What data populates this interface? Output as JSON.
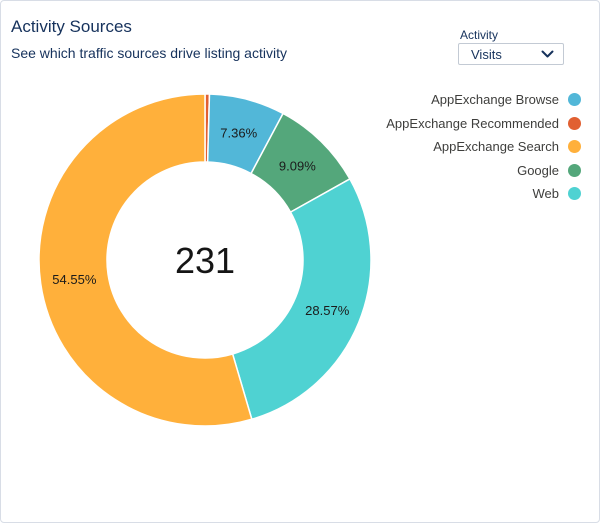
{
  "header": {
    "title": "Activity Sources",
    "subtitle": "See which traffic sources drive listing activity"
  },
  "filter": {
    "label": "Activity",
    "selected": "Visits"
  },
  "chart_data": {
    "type": "pie",
    "variant": "donut",
    "center_value": "231",
    "legend_position": "top-right",
    "series": [
      {
        "name": "AppExchange Browse",
        "value": 7.36,
        "label": "7.36%",
        "color": "#52b7d8"
      },
      {
        "name": "AppExchange Recommended",
        "value": 0.43,
        "label": "",
        "color": "#e16032"
      },
      {
        "name": "AppExchange Search",
        "value": 54.55,
        "label": "54.55%",
        "color": "#ffb03b"
      },
      {
        "name": "Google",
        "value": 9.09,
        "label": "9.09%",
        "color": "#54a77b"
      },
      {
        "name": "Web",
        "value": 28.57,
        "label": "28.57%",
        "color": "#4fd2d2"
      }
    ],
    "draw_order": [
      "AppExchange Recommended",
      "AppExchange Browse",
      "Google",
      "Web",
      "AppExchange Search"
    ]
  }
}
